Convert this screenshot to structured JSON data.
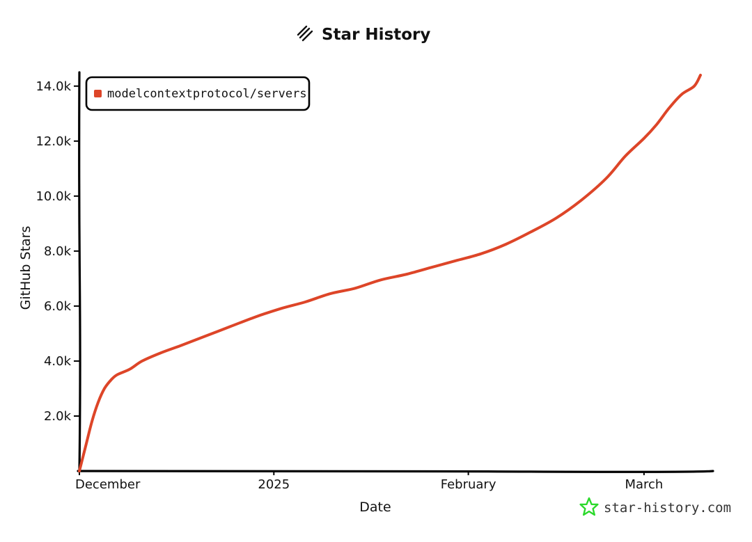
{
  "header": {
    "title": "Star History",
    "logo_icon": "star-history-logo-icon"
  },
  "watermark": {
    "text": "star-history.com",
    "icon": "star-history-star-icon",
    "icon_color": "#2bd92b"
  },
  "colors": {
    "series": "#dd4528",
    "axis": "#000000"
  },
  "chart_data": {
    "type": "line",
    "title": "Star History",
    "xlabel": "Date",
    "ylabel": "GitHub Stars",
    "x_ticks": [
      {
        "label": "December",
        "date": "2024-12-01"
      },
      {
        "label": "2025",
        "date": "2025-01-01"
      },
      {
        "label": "February",
        "date": "2025-02-01"
      },
      {
        "label": "March",
        "date": "2025-03-01"
      }
    ],
    "y_ticks": [
      2000,
      4000,
      6000,
      8000,
      10000,
      12000,
      14000
    ],
    "y_tick_labels": [
      "2.0k",
      "4.0k",
      "6.0k",
      "8.0k",
      "10.0k",
      "12.0k",
      "14.0k"
    ],
    "xlim": [
      "2024-12-01",
      "2025-03-12"
    ],
    "ylim": [
      0,
      14500
    ],
    "grid": false,
    "legend_position": "top-left",
    "series": [
      {
        "name": "modelcontextprotocol/servers",
        "points": [
          {
            "x": "2024-12-01",
            "y": 0
          },
          {
            "x": "2024-12-02",
            "y": 900
          },
          {
            "x": "2024-12-03",
            "y": 1800
          },
          {
            "x": "2024-12-04",
            "y": 2500
          },
          {
            "x": "2024-12-05",
            "y": 3000
          },
          {
            "x": "2024-12-06",
            "y": 3300
          },
          {
            "x": "2024-12-07",
            "y": 3500
          },
          {
            "x": "2024-12-09",
            "y": 3700
          },
          {
            "x": "2024-12-11",
            "y": 4000
          },
          {
            "x": "2024-12-14",
            "y": 4300
          },
          {
            "x": "2024-12-17",
            "y": 4550
          },
          {
            "x": "2024-12-21",
            "y": 4900
          },
          {
            "x": "2024-12-25",
            "y": 5250
          },
          {
            "x": "2024-12-29",
            "y": 5600
          },
          {
            "x": "2025-01-02",
            "y": 5900
          },
          {
            "x": "2025-01-06",
            "y": 6150
          },
          {
            "x": "2025-01-10",
            "y": 6450
          },
          {
            "x": "2025-01-14",
            "y": 6650
          },
          {
            "x": "2025-01-18",
            "y": 6950
          },
          {
            "x": "2025-01-22",
            "y": 7150
          },
          {
            "x": "2025-01-26",
            "y": 7400
          },
          {
            "x": "2025-01-30",
            "y": 7650
          },
          {
            "x": "2025-02-03",
            "y": 7900
          },
          {
            "x": "2025-02-07",
            "y": 8250
          },
          {
            "x": "2025-02-11",
            "y": 8700
          },
          {
            "x": "2025-02-15",
            "y": 9200
          },
          {
            "x": "2025-02-19",
            "y": 9850
          },
          {
            "x": "2025-02-23",
            "y": 10650
          },
          {
            "x": "2025-02-26",
            "y": 11450
          },
          {
            "x": "2025-03-01",
            "y": 12100
          },
          {
            "x": "2025-03-03",
            "y": 12600
          },
          {
            "x": "2025-03-05",
            "y": 13200
          },
          {
            "x": "2025-03-07",
            "y": 13700
          },
          {
            "x": "2025-03-09",
            "y": 14000
          },
          {
            "x": "2025-03-10",
            "y": 14400
          }
        ]
      }
    ]
  }
}
